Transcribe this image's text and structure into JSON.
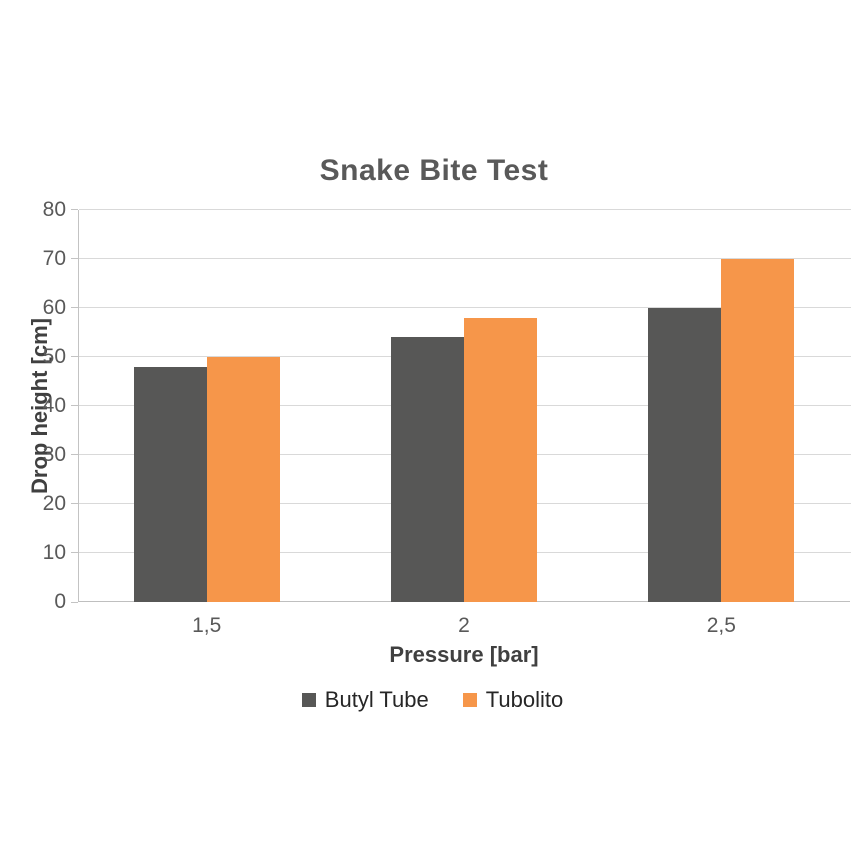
{
  "chart_data": {
    "type": "bar",
    "title": "Snake Bite Test",
    "categories": [
      "1,5",
      "2",
      "2,5"
    ],
    "series": [
      {
        "name": "Butyl Tube",
        "color": "#575756",
        "values": [
          48,
          54,
          60
        ]
      },
      {
        "name": "Tubolito",
        "color": "#F6964A",
        "values": [
          50,
          58,
          70
        ]
      }
    ],
    "xlabel": "Pressure [bar]",
    "ylabel": "Drop height [cm]",
    "ylim": [
      0,
      80
    ],
    "ytick_step": 10,
    "grid": true,
    "legend_position": "bottom",
    "colors": {
      "title_text": "#595959",
      "axis_title_text": "#404040",
      "tick_label_text": "#595959",
      "legend_text": "#262626",
      "gridline": "#d9d9d9",
      "axis_line": "#bfbfbf",
      "background": "#ffffff"
    }
  }
}
